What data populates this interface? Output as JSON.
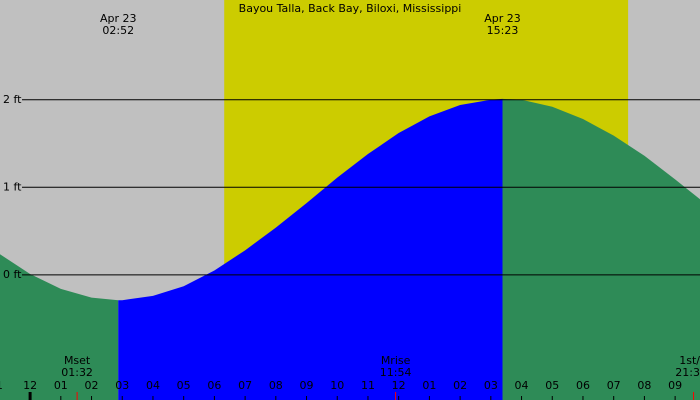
{
  "chart_data": {
    "type": "tide",
    "title": "Bayou Talla, Back Bay, Biloxi, Mississippi",
    "background_color": "#c0c0c0",
    "daylight_color": "#cccc00",
    "daylight": [
      6.32,
      19.47
    ],
    "rising_color": "#0000ff",
    "falling_color": "#2e8b57",
    "x": [
      -1,
      0,
      1,
      2,
      2.87,
      3,
      4,
      5,
      6,
      7,
      8,
      9,
      10,
      11,
      12,
      13,
      14,
      15,
      15.38,
      16,
      17,
      18,
      19,
      20,
      21,
      22
    ],
    "values": [
      0.24,
      0.01,
      -0.16,
      -0.26,
      -0.29,
      -0.29,
      -0.24,
      -0.13,
      0.05,
      0.28,
      0.54,
      0.82,
      1.11,
      1.38,
      1.62,
      1.81,
      1.94,
      2.0,
      2.01,
      2.0,
      1.92,
      1.78,
      1.59,
      1.36,
      1.09,
      0.81
    ],
    "xlim": [
      -0.98,
      21.81
    ],
    "ylim": [
      -1.43,
      3.14
    ],
    "yticks": [
      {
        "value": 0,
        "label": "0 ft"
      },
      {
        "value": 1,
        "label": "1 ft"
      },
      {
        "value": 2,
        "label": "2 ft"
      }
    ],
    "xticks": [
      {
        "value": -1,
        "label": "1"
      },
      {
        "value": 0,
        "label": "12"
      },
      {
        "value": 1,
        "label": "01"
      },
      {
        "value": 2,
        "label": "02"
      },
      {
        "value": 3,
        "label": "03"
      },
      {
        "value": 4,
        "label": "04"
      },
      {
        "value": 5,
        "label": "05"
      },
      {
        "value": 6,
        "label": "06"
      },
      {
        "value": 7,
        "label": "07"
      },
      {
        "value": 8,
        "label": "08"
      },
      {
        "value": 9,
        "label": "09"
      },
      {
        "value": 10,
        "label": "10"
      },
      {
        "value": 11,
        "label": "11"
      },
      {
        "value": 12,
        "label": "12"
      },
      {
        "value": 13,
        "label": "01"
      },
      {
        "value": 14,
        "label": "02"
      },
      {
        "value": 15,
        "label": "03"
      },
      {
        "value": 16,
        "label": "04"
      },
      {
        "value": 17,
        "label": "05"
      },
      {
        "value": 18,
        "label": "06"
      },
      {
        "value": 19,
        "label": "07"
      },
      {
        "value": 20,
        "label": "08"
      },
      {
        "value": 21,
        "label": "09"
      },
      {
        "value": 22,
        "label": "1"
      }
    ],
    "extremes": [
      {
        "x": 2.87,
        "date": "Apr 23",
        "time": "02:52"
      },
      {
        "x": 15.38,
        "date": "Apr 23",
        "time": "15:23"
      }
    ],
    "moon_events": [
      {
        "x": 1.53,
        "label": "Mset",
        "time": "01:32"
      },
      {
        "x": 11.9,
        "label": "Mrise",
        "time": "11:54"
      },
      {
        "x": 21.6,
        "label": "1st/",
        "time": "21:3"
      }
    ]
  }
}
